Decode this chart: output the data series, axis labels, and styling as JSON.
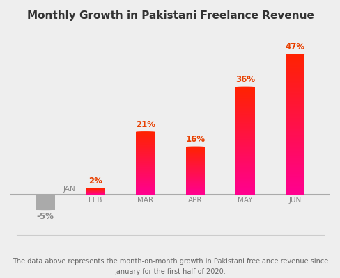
{
  "title": "Monthly Growth in Pakistani Freelance Revenue",
  "categories": [
    "JAN",
    "FEB",
    "MAR",
    "APR",
    "MAY",
    "JUN"
  ],
  "values": [
    -5,
    2,
    21,
    16,
    36,
    47
  ],
  "bar_color_bottom": "#FF0090",
  "bar_color_top": "#FF2200",
  "bar_color_negative": "#AAAAAA",
  "label_color": "#E84000",
  "label_color_negative": "#888888",
  "category_color": "#888888",
  "background_color": "#EEEEEE",
  "footnote_line1": "The data above represents the month-on-month growth in Pakistani freelance revenue since",
  "footnote_line2": "January for the first half of 2020.",
  "ylim": [
    -10,
    55
  ],
  "bar_width": 0.38
}
